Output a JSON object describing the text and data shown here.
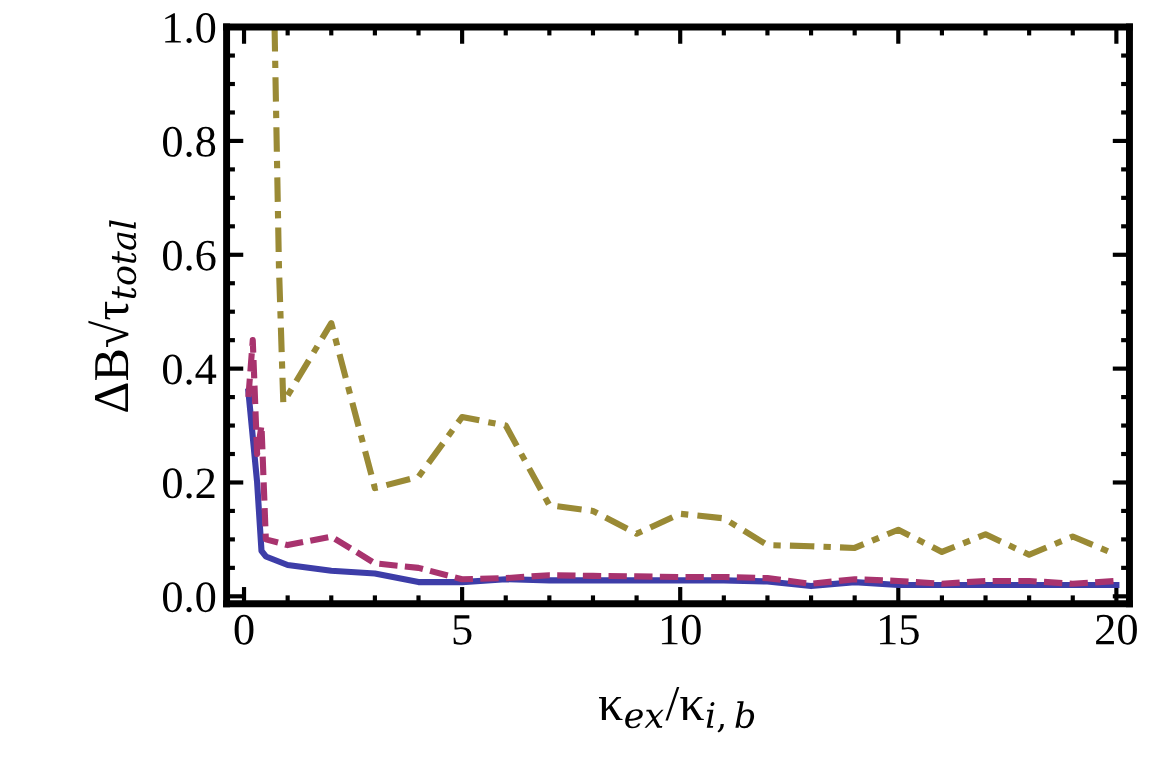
{
  "chart_data": {
    "type": "line",
    "xlabel": "κ$_{ex}$/κ$_{i,b}$",
    "ylabel": "ΔB√τ$_{total}$",
    "xlim": [
      -0.4,
      20.3
    ],
    "ylim": [
      -0.013,
      1.0
    ],
    "xticks": [
      0,
      5,
      10,
      15,
      20
    ],
    "yticks": [
      {
        "value": 0,
        "label": "0.0"
      },
      {
        "value": 0.2,
        "label": "0.2"
      },
      {
        "value": 0.4,
        "label": "0.4"
      },
      {
        "value": 0.6,
        "label": "0.6"
      },
      {
        "value": 0.8,
        "label": "0.8"
      },
      {
        "value": 1.0,
        "label": "1.0"
      }
    ],
    "grid": false,
    "legend": false,
    "series": [
      {
        "color": "#3d3da8",
        "line_style": "solid",
        "x": [
          0.1,
          0.3,
          0.4,
          0.5,
          1,
          2,
          3,
          4,
          5,
          6,
          7,
          8,
          9,
          10,
          11,
          12,
          13,
          14,
          15,
          16,
          17,
          18,
          19,
          20
        ],
        "values": [
          0.36,
          0.2,
          0.08,
          0.07,
          0.055,
          0.045,
          0.04,
          0.025,
          0.025,
          0.03,
          0.028,
          0.028,
          0.028,
          0.028,
          0.028,
          0.026,
          0.018,
          0.025,
          0.02,
          0.02,
          0.02,
          0.02,
          0.02,
          0.02
        ]
      },
      {
        "color": "#a8336e",
        "line_style": "dashed",
        "x": [
          0.1,
          0.2,
          0.3,
          0.4,
          0.5,
          1,
          2,
          3,
          4,
          5,
          6,
          7,
          8,
          9,
          10,
          11,
          12,
          13,
          14,
          15,
          16,
          17,
          18,
          19,
          20
        ],
        "values": [
          0.35,
          0.45,
          0.25,
          0.3,
          0.1,
          0.09,
          0.105,
          0.058,
          0.05,
          0.03,
          0.032,
          0.037,
          0.036,
          0.035,
          0.034,
          0.034,
          0.032,
          0.022,
          0.03,
          0.027,
          0.022,
          0.027,
          0.027,
          0.022,
          0.027
        ]
      },
      {
        "color": "#9a8a35",
        "line_style": "dashdot",
        "x": [
          0.7,
          0.8,
          0.9,
          2,
          3,
          4,
          5,
          6,
          7,
          8,
          9,
          10,
          11,
          12,
          13,
          14,
          15,
          16,
          17,
          18,
          19,
          20
        ],
        "values": [
          1.0,
          0.58,
          0.34,
          0.48,
          0.19,
          0.21,
          0.315,
          0.3,
          0.16,
          0.15,
          0.11,
          0.145,
          0.137,
          0.09,
          0.088,
          0.085,
          0.117,
          0.078,
          0.109,
          0.073,
          0.105,
          0.073
        ]
      }
    ]
  }
}
